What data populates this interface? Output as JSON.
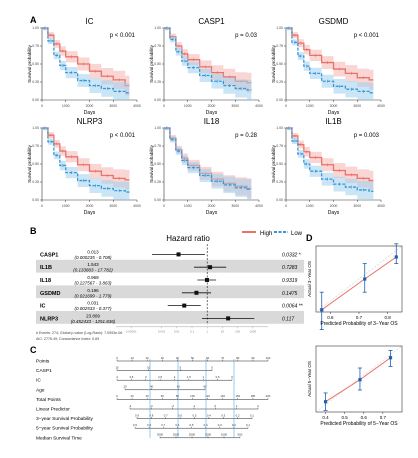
{
  "panel_letters": {
    "a": "A",
    "b": "B",
    "c": "C",
    "d": "D"
  },
  "colors": {
    "high": "#e8736b",
    "low": "#3a97d6",
    "high_band": "#f4b3ae",
    "low_band": "#9fd0ef",
    "forest_band": "#d9d9d9",
    "calib_line": "#e8736b",
    "calib_point": "#1f5fb0"
  },
  "legend": {
    "high": "High",
    "low": "Low"
  },
  "chart_data": [
    {
      "type": "line",
      "panel": "A",
      "title": "IC",
      "annotation": "p < 0.001",
      "xlabel": "Days",
      "ylabel": "Survival probability",
      "xlim": [
        0,
        4000
      ],
      "ylim": [
        0,
        1
      ],
      "xticks": [
        0,
        1000,
        2000,
        3000,
        4000
      ],
      "yticks": [
        0.0,
        0.25,
        0.5,
        0.75,
        1.0
      ],
      "series": [
        {
          "name": "High",
          "x": [
            0,
            250,
            500,
            750,
            1000,
            1500,
            2000,
            2500,
            3000,
            3500
          ],
          "y": [
            1.0,
            0.9,
            0.78,
            0.68,
            0.6,
            0.5,
            0.4,
            0.33,
            0.28,
            0.2
          ]
        },
        {
          "name": "Low",
          "x": [
            0,
            250,
            500,
            750,
            1000,
            1500,
            2000,
            2500,
            3000,
            3500
          ],
          "y": [
            1.0,
            0.82,
            0.62,
            0.48,
            0.38,
            0.27,
            0.2,
            0.16,
            0.12,
            0.1
          ]
        }
      ]
    },
    {
      "type": "line",
      "panel": "A",
      "title": "CASP1",
      "annotation": "p = 0.03",
      "xlabel": "Days",
      "ylabel": "Survival probability",
      "xlim": [
        0,
        4000
      ],
      "ylim": [
        0,
        1
      ],
      "xticks": [
        0,
        1000,
        2000,
        3000,
        4000
      ],
      "yticks": [
        0.0,
        0.25,
        0.5,
        0.75,
        1.0
      ],
      "series": [
        {
          "name": "High",
          "x": [
            0,
            250,
            500,
            750,
            1000,
            1500,
            2000,
            2500,
            3000,
            3500
          ],
          "y": [
            1.0,
            0.88,
            0.75,
            0.64,
            0.56,
            0.46,
            0.38,
            0.32,
            0.26,
            0.24
          ]
        },
        {
          "name": "Low",
          "x": [
            0,
            250,
            500,
            750,
            1000,
            1500,
            2000,
            2500,
            3000,
            3500
          ],
          "y": [
            1.0,
            0.84,
            0.67,
            0.54,
            0.45,
            0.34,
            0.26,
            0.2,
            0.16,
            0.14
          ]
        }
      ]
    },
    {
      "type": "line",
      "panel": "A",
      "title": "GSDMD",
      "annotation": "p < 0.001",
      "xlabel": "Days",
      "ylabel": "Survival probability",
      "xlim": [
        0,
        4000
      ],
      "ylim": [
        0,
        1
      ],
      "xticks": [
        0,
        1000,
        2000,
        3000,
        4000
      ],
      "yticks": [
        0.0,
        0.25,
        0.5,
        0.75,
        1.0
      ],
      "series": [
        {
          "name": "High",
          "x": [
            0,
            250,
            500,
            750,
            1000,
            1500,
            2000,
            2500,
            3000,
            3500
          ],
          "y": [
            1.0,
            0.9,
            0.79,
            0.7,
            0.62,
            0.52,
            0.43,
            0.37,
            0.31,
            0.28
          ]
        },
        {
          "name": "Low",
          "x": [
            0,
            250,
            500,
            750,
            1000,
            1500,
            2000,
            2500,
            3000,
            3500
          ],
          "y": [
            1.0,
            0.8,
            0.61,
            0.47,
            0.37,
            0.26,
            0.19,
            0.15,
            0.12,
            0.1
          ]
        }
      ]
    },
    {
      "type": "line",
      "panel": "A",
      "title": "NLRP3",
      "annotation": "p < 0.001",
      "xlabel": "Days",
      "ylabel": "Survival probability",
      "xlim": [
        0,
        4000
      ],
      "ylim": [
        0,
        1
      ],
      "xticks": [
        0,
        1000,
        2000,
        3000,
        4000
      ],
      "yticks": [
        0.0,
        0.25,
        0.5,
        0.75,
        1.0
      ],
      "series": [
        {
          "name": "High",
          "x": [
            0,
            250,
            500,
            750,
            1000,
            1500,
            2000,
            2500,
            3000,
            3500
          ],
          "y": [
            1.0,
            0.9,
            0.78,
            0.68,
            0.6,
            0.49,
            0.4,
            0.34,
            0.3,
            0.28
          ]
        },
        {
          "name": "Low",
          "x": [
            0,
            250,
            500,
            750,
            1000,
            1500,
            2000,
            2500,
            3000,
            3500
          ],
          "y": [
            1.0,
            0.81,
            0.62,
            0.48,
            0.38,
            0.27,
            0.2,
            0.16,
            0.13,
            0.11
          ]
        }
      ]
    },
    {
      "type": "line",
      "panel": "A",
      "title": "IL18",
      "annotation": "p = 0.28",
      "xlabel": "Days",
      "ylabel": "Survival probability",
      "xlim": [
        0,
        4000
      ],
      "ylim": [
        0,
        1
      ],
      "xticks": [
        0,
        1000,
        2000,
        3000,
        4000
      ],
      "yticks": [
        0.0,
        0.25,
        0.5,
        0.75,
        1.0
      ],
      "series": [
        {
          "name": "High",
          "x": [
            0,
            250,
            500,
            750,
            1000,
            1500,
            2000,
            2500,
            3000,
            3500
          ],
          "y": [
            1.0,
            0.86,
            0.7,
            0.58,
            0.48,
            0.37,
            0.29,
            0.23,
            0.19,
            0.16
          ]
        },
        {
          "name": "Low",
          "x": [
            0,
            250,
            500,
            750,
            1000,
            1500,
            2000,
            2500,
            3000,
            3500
          ],
          "y": [
            1.0,
            0.84,
            0.68,
            0.55,
            0.45,
            0.34,
            0.26,
            0.21,
            0.17,
            0.15
          ]
        }
      ]
    },
    {
      "type": "line",
      "panel": "A",
      "title": "IL1B",
      "annotation": "p = 0.003",
      "xlabel": "Days",
      "ylabel": "Survival probability",
      "xlim": [
        0,
        4000
      ],
      "ylim": [
        0,
        1
      ],
      "xticks": [
        0,
        1000,
        2000,
        3000,
        4000
      ],
      "yticks": [
        0.0,
        0.25,
        0.5,
        0.75,
        1.0
      ],
      "series": [
        {
          "name": "High",
          "x": [
            0,
            250,
            500,
            750,
            1000,
            1500,
            2000,
            2500,
            3000,
            3500
          ],
          "y": [
            1.0,
            0.89,
            0.77,
            0.67,
            0.59,
            0.49,
            0.41,
            0.35,
            0.3,
            0.27
          ]
        },
        {
          "name": "Low",
          "x": [
            0,
            250,
            500,
            750,
            1000,
            1500,
            2000,
            2500,
            3000,
            3500
          ],
          "y": [
            1.0,
            0.82,
            0.64,
            0.5,
            0.4,
            0.29,
            0.22,
            0.18,
            0.14,
            0.12
          ]
        }
      ]
    },
    {
      "type": "forest",
      "panel": "B",
      "title": "Hazard ratio",
      "ref": 1,
      "xlim": [
        1e-06,
        10000
      ],
      "xticks": [
        1e-05,
        0.001,
        0.01,
        0.1,
        1,
        10,
        100,
        1000
      ],
      "rows": [
        {
          "label": "CASP1",
          "hr": 0.013,
          "ci_text": "(0.000235 - 0.708)",
          "p": "0.0332 *",
          "low": 0.000235,
          "high": 0.708
        },
        {
          "label": "IL1B",
          "hr": 1.543,
          "ci_text": "(0.133803 - 17.782)",
          "p": "0.7283",
          "low": 0.133803,
          "high": 17.782
        },
        {
          "label": "IL18",
          "hr": 0.969,
          "ci_text": "(0.227567 - 3.863)",
          "p": "0.9319",
          "low": 0.227567,
          "high": 3.863
        },
        {
          "label": "GSDMD",
          "hr": 0.196,
          "ci_text": "(0.021699 - 1.779)",
          "p": "0.1475",
          "low": 0.021699,
          "high": 1.779
        },
        {
          "label": "IC",
          "hr": 0.031,
          "ci_text": "(0.002533 - 0.377)",
          "p": "0.0064 **",
          "low": 0.002533,
          "high": 0.377
        },
        {
          "label": "NLRP3",
          "hr": 23.809,
          "ci_text": "(0.452433 - 1251.836)",
          "p": "0.117",
          "low": 0.452433,
          "high": 1251.836
        }
      ],
      "footer": [
        "# Events: 274; Global p-value (Log-Rank): 7.0993e-06",
        "AIC: 2776.49; Concordance Index: 0.69"
      ]
    },
    {
      "type": "scatter",
      "panel": "D",
      "xlabel": "Predicted Probability of 3−Year OS",
      "ylabel": "Actual 3−Year OS",
      "xlim": [
        0.55,
        0.85
      ],
      "ylim": [
        0.55,
        0.85
      ],
      "xticks": [
        0.6,
        0.7,
        0.8
      ],
      "points": [
        {
          "x": 0.57,
          "y": 0.56,
          "lo": 0.47,
          "hi": 0.64
        },
        {
          "x": 0.72,
          "y": 0.7,
          "lo": 0.64,
          "hi": 0.77
        },
        {
          "x": 0.83,
          "y": 0.8,
          "lo": 0.77,
          "hi": 0.86
        }
      ]
    },
    {
      "type": "scatter",
      "panel": "D",
      "xlabel": "Predicted Probability of 5−Year OS",
      "ylabel": "Actual 5−Year OS",
      "xlim": [
        0.35,
        0.8
      ],
      "ylim": [
        0.35,
        0.8
      ],
      "xticks": [
        0.4,
        0.5,
        0.6,
        0.7
      ],
      "points": [
        {
          "x": 0.4,
          "y": 0.42,
          "lo": 0.36,
          "hi": 0.48
        },
        {
          "x": 0.58,
          "y": 0.57,
          "lo": 0.5,
          "hi": 0.65
        },
        {
          "x": 0.74,
          "y": 0.72,
          "lo": 0.66,
          "hi": 0.77
        }
      ]
    },
    {
      "type": "table",
      "panel": "C",
      "title": "Nomogram",
      "rows": [
        {
          "label": "Points",
          "ticks": [
            "0",
            "10",
            "20",
            "30",
            "40",
            "50",
            "60",
            "70",
            "80",
            "90",
            "100"
          ]
        },
        {
          "label": "CASP1",
          "ticks": [
            "15",
            "10",
            "5",
            "0"
          ]
        },
        {
          "label": "IC",
          "ticks": [
            "4",
            "3.5",
            "3",
            "2.5",
            "2",
            "1.5",
            "1",
            "0.5",
            "0"
          ]
        },
        {
          "label": "Age",
          "ticks": [
            "20",
            "40",
            "60",
            "80"
          ]
        },
        {
          "label": "Total Points",
          "ticks": [
            "0",
            "20",
            "40",
            "60",
            "80",
            "100",
            "120",
            "140",
            "160",
            "180",
            "200"
          ]
        },
        {
          "label": "Linear Predictor",
          "ticks": [
            "-4",
            "-3",
            "-2",
            "-1",
            "0",
            "1",
            "2"
          ]
        },
        {
          "label": "3−year Survival Probability",
          "ticks": [
            "0.9",
            "0.8",
            "0.7",
            "0.6",
            "0.5",
            "0.4",
            "0.3",
            "0.2",
            "0.1"
          ]
        },
        {
          "label": "5−year Survival Probability",
          "ticks": [
            "0.9",
            "0.8",
            "0.7",
            "0.6",
            "0.5",
            "0.4",
            "0.3",
            "0.2",
            "0.1"
          ]
        },
        {
          "label": "Median Survival Time",
          "ticks": [
            "3000",
            "2500",
            "2000",
            "1500",
            "1000",
            "500"
          ]
        }
      ]
    }
  ]
}
